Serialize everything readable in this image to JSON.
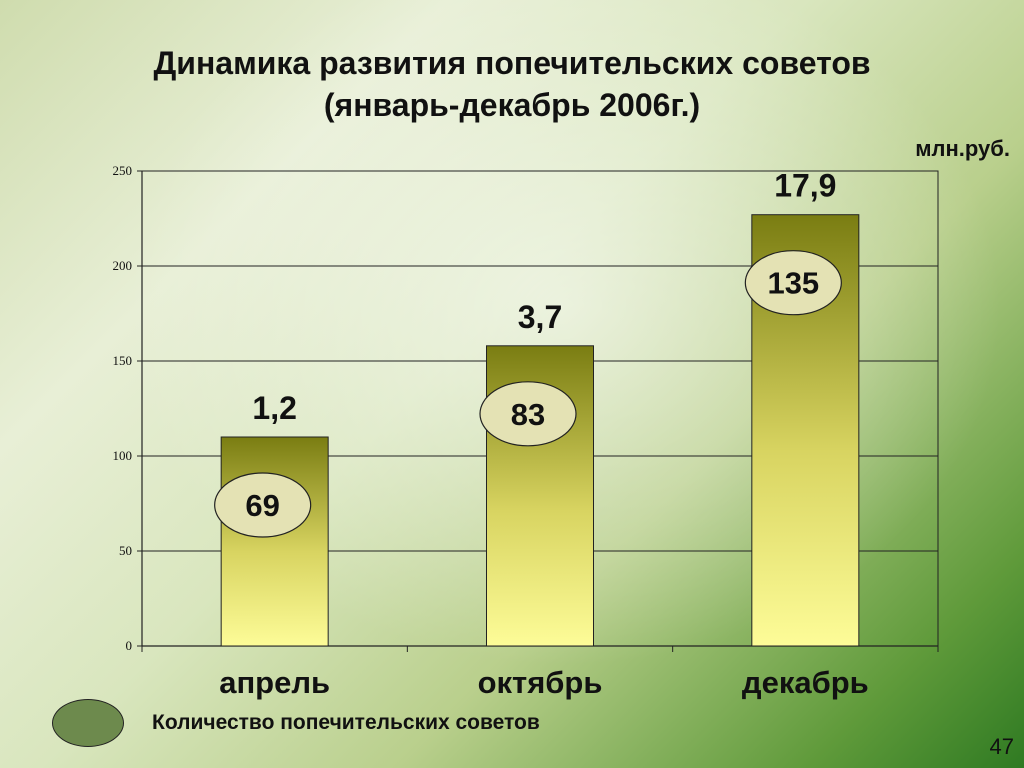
{
  "title_line1": "Динамика развития попечительских советов",
  "title_line2": "(январь-декабрь 2006г.)",
  "units": "млн.руб.",
  "page_number": "47",
  "legend": {
    "label": "Количество попечительских советов"
  },
  "colors": {
    "bar_top": "#7a7d12",
    "bar_bottom": "#fdfc98",
    "bubble_fill": "#e4e2b4",
    "legend_swatch": "#6d8a4d"
  },
  "chart_data": {
    "type": "bar",
    "categories": [
      "апрель",
      "октябрь",
      "декабрь"
    ],
    "values": [
      110,
      158,
      227
    ],
    "amount_labels": [
      "1,2",
      "3,7",
      "17,9"
    ],
    "count_labels": [
      "69",
      "83",
      "135"
    ],
    "ylim": [
      0,
      250
    ],
    "yticks": [
      0,
      50,
      100,
      150,
      200,
      250
    ],
    "grid": true,
    "legend_position": "bottom-left"
  }
}
